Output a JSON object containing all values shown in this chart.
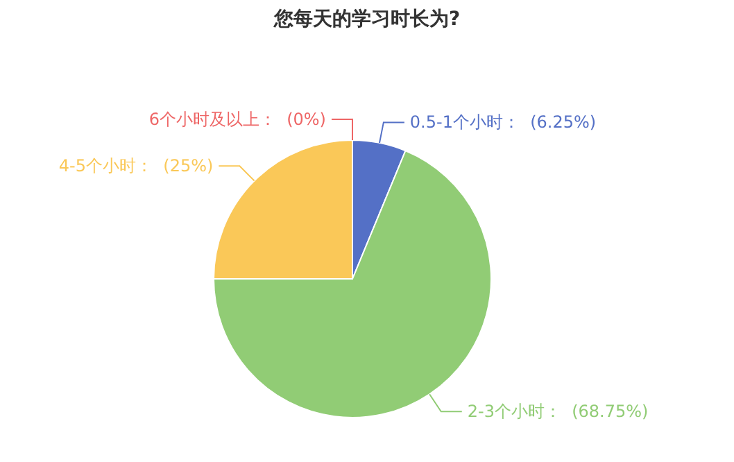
{
  "chart_data": {
    "type": "pie",
    "title": "您每天的学习时长为?",
    "categories": [
      "0.5-1个小时",
      "2-3个小时",
      "4-5个小时",
      "6个小时及以上"
    ],
    "values": [
      6.25,
      68.75,
      25,
      0
    ],
    "colors": [
      "#5470c6",
      "#91cc75",
      "#fac858",
      "#ee6666"
    ],
    "value_labels": [
      "(6.25%)",
      "(68.75%)",
      "(25%)",
      "(0%)"
    ]
  }
}
